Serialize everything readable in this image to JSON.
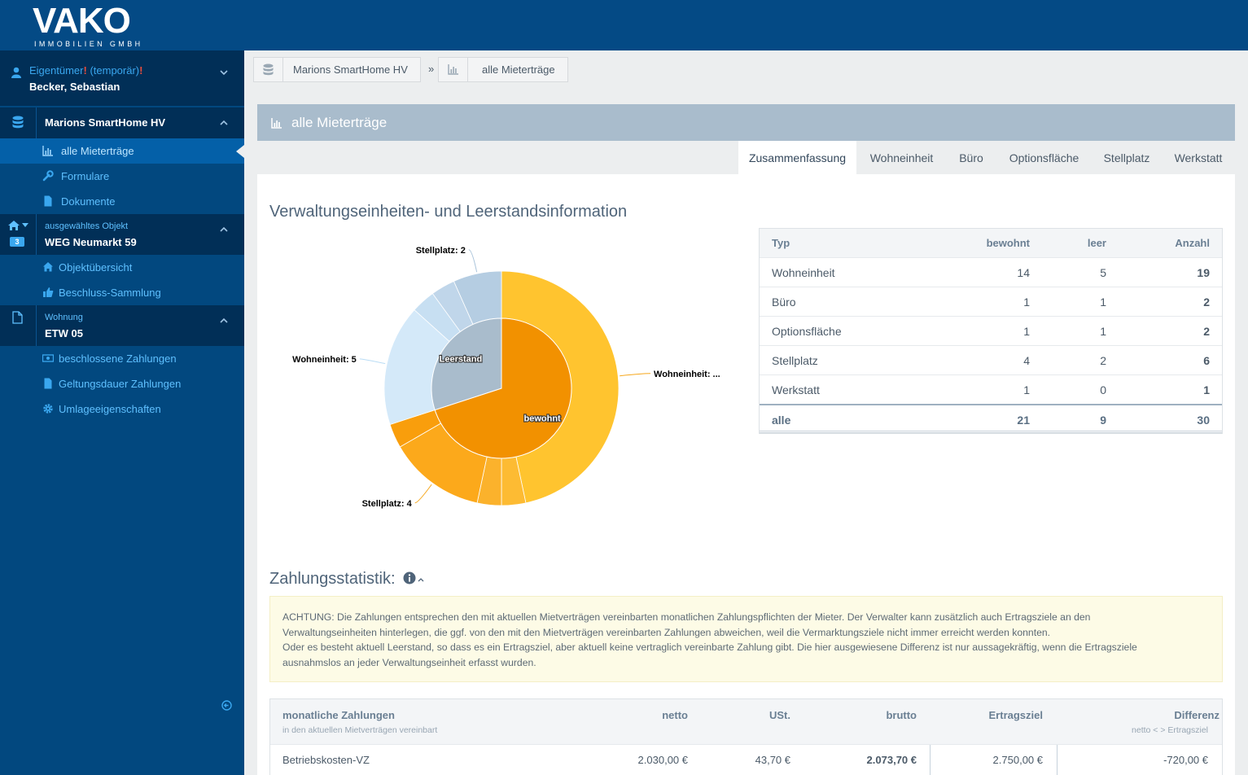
{
  "brand": {
    "name": "VAKO",
    "subtitle": "IMMOBILIEN GMBH"
  },
  "sidebar": {
    "user": {
      "role_prefix": "Eigentümer",
      "role_mark1": "!",
      "role_middle": " (temporär)",
      "role_mark2": "!",
      "name": "Becker, Sebastian"
    },
    "project": {
      "title": "Marions SmartHome HV",
      "items": [
        {
          "label": "alle Mieterträge",
          "icon": "bar-chart-icon"
        },
        {
          "label": "Formulare",
          "icon": "wrench-icon"
        },
        {
          "label": "Dokumente",
          "icon": "file-icon"
        }
      ]
    },
    "object": {
      "caption": "ausgewähltes Objekt",
      "name": "WEG Neumarkt 59",
      "badge": "3",
      "items": [
        {
          "label": "Objektübersicht",
          "icon": "home-icon"
        },
        {
          "label": "Beschluss-Sammlung",
          "icon": "thumbs-up-icon"
        }
      ]
    },
    "unit": {
      "caption": "Wohnung",
      "name": "ETW 05",
      "items": [
        {
          "label": "beschlossene Zahlungen",
          "icon": "money-icon"
        },
        {
          "label": "Geltungsdauer Zahlungen",
          "icon": "file-icon"
        },
        {
          "label": "Umlageeigenschaften",
          "icon": "gear-icon"
        }
      ]
    }
  },
  "breadcrumb": {
    "items": [
      "Marions SmartHome HV",
      "alle Mieterträge"
    ],
    "separator": "»"
  },
  "panel": {
    "title": "alle Mieterträge",
    "tabs": [
      "Zusammenfassung",
      "Wohneinheit",
      "Büro",
      "Optionsfläche",
      "Stellplatz",
      "Werkstatt"
    ],
    "active_tab": "Zusammenfassung"
  },
  "summary": {
    "heading": "Verwaltungseinheiten- und Leerstandsinformation",
    "columns": [
      "Typ",
      "bewohnt",
      "leer",
      "Anzahl"
    ],
    "rows": [
      {
        "typ": "Wohneinheit",
        "bewohnt": "14",
        "leer": "5",
        "anzahl": "19"
      },
      {
        "typ": "Büro",
        "bewohnt": "1",
        "leer": "1",
        "anzahl": "2"
      },
      {
        "typ": "Optionsfläche",
        "bewohnt": "1",
        "leer": "1",
        "anzahl": "2"
      },
      {
        "typ": "Stellplatz",
        "bewohnt": "4",
        "leer": "2",
        "anzahl": "6"
      },
      {
        "typ": "Werkstatt",
        "bewohnt": "1",
        "leer": "0",
        "anzahl": "1"
      }
    ],
    "total": {
      "typ": "alle",
      "bewohnt": "21",
      "leer": "9",
      "anzahl": "30"
    }
  },
  "chart_data": {
    "type": "pie",
    "inner": [
      {
        "name": "bewohnt",
        "value": 21,
        "color": "#f29100"
      },
      {
        "name": "Leerstand",
        "value": 9,
        "color": "#a9bccc"
      }
    ],
    "outer": [
      {
        "name": "Wohneinheit",
        "group": "bewohnt",
        "value": 14,
        "label": "Wohneinheit: ...",
        "color": "#ffc42f"
      },
      {
        "name": "Büro",
        "group": "bewohnt",
        "value": 1,
        "label": "",
        "color": "#fdbb33"
      },
      {
        "name": "Optionsfläche",
        "group": "bewohnt",
        "value": 1,
        "label": "",
        "color": "#fbb22c"
      },
      {
        "name": "Stellplatz",
        "group": "bewohnt",
        "value": 4,
        "label": "Stellplatz: 4",
        "color": "#fca91b"
      },
      {
        "name": "Werkstatt",
        "group": "bewohnt",
        "value": 1,
        "label": "",
        "color": "#f99e0c"
      },
      {
        "name": "Wohneinheit",
        "group": "Leerstand",
        "value": 5,
        "label": "Wohneinheit: 5",
        "color": "#d4e9f9"
      },
      {
        "name": "Büro",
        "group": "Leerstand",
        "value": 1,
        "label": "",
        "color": "#c7dff2"
      },
      {
        "name": "Optionsfläche",
        "group": "Leerstand",
        "value": 1,
        "label": "",
        "color": "#c0d6ea"
      },
      {
        "name": "Stellplatz",
        "group": "Leerstand",
        "value": 2,
        "label": "Stellplatz: 2",
        "color": "#b5cde2"
      },
      {
        "name": "Werkstatt",
        "group": "Leerstand",
        "value": 0,
        "label": "",
        "color": "#aac3d9"
      }
    ]
  },
  "payments": {
    "heading": "Zahlungsstatistik:",
    "warning_lines": [
      "ACHTUNG: Die Zahlungen entsprechen den mit aktuellen Mietverträgen vereinbarten monatlichen Zahlungspflichten der Mieter. Der Verwalter kann zusätzlich auch Ertragsziele an den",
      "Verwaltungseinheiten hinterlegen, die ggf. von den mit den Mietverträgen vereinbarten Zahlungen abweichen, weil die Vermarktungsziele nicht immer erreicht werden konnten.",
      "Oder es besteht aktuell Leerstand, so dass es ein Ertragsziel, aber aktuell keine vertraglich vereinbarte Zahlung gibt. Die hier ausgewiesene Differenz ist nur aussagekräftig, wenn die Ertragsziele",
      "ausnahmslos an jeder Verwaltungseinheit erfasst wurden."
    ],
    "columns": {
      "label": "monatliche Zahlungen",
      "label_sub": "in den aktuellen Mietverträgen vereinbart",
      "netto": "netto",
      "ust": "USt.",
      "brutto": "brutto",
      "ertragsziel": "Ertragsziel",
      "differenz": "Differenz",
      "differenz_sub": "netto < > Ertragsziel"
    },
    "rows": [
      {
        "label": "Betriebskosten-VZ",
        "netto": "2.030,00 €",
        "ust": "43,70 €",
        "brutto": "2.073,70 €",
        "ertragsziel": "2.750,00 €",
        "differenz": "-720,00 €"
      }
    ]
  }
}
